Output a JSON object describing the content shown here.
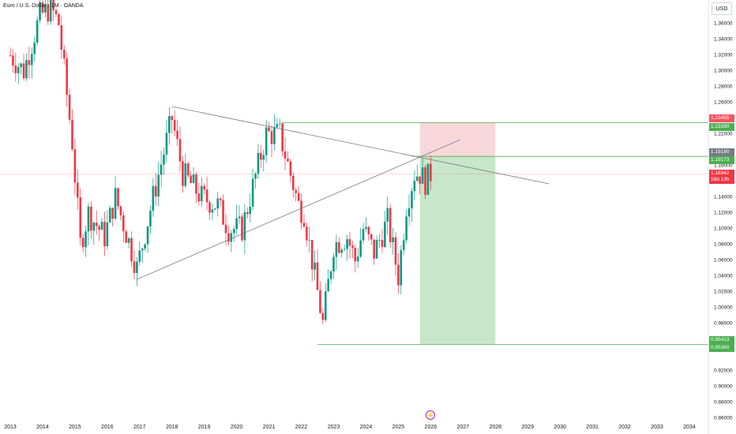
{
  "title": "Euro / U.S. Dollar · 1M · OANDA",
  "currency_label": "USD",
  "colors": {
    "up": "#089981",
    "down": "#f23645",
    "target_zone": "#c8e6c9",
    "stop_zone": "#f8d7da",
    "level_line": "#4caf50",
    "trend_line": "#787b86",
    "price_line": "#f23645"
  },
  "chart_data": {
    "type": "candlestick",
    "title": "Euro / U.S. Dollar · 1M · OANDA",
    "x_axis_years": [
      "2013",
      "2014",
      "2015",
      "2016",
      "2017",
      "2018",
      "2019",
      "2020",
      "2021",
      "2022",
      "2023",
      "2024",
      "2025",
      "2026",
      "2027",
      "2028",
      "2029",
      "2030",
      "2031",
      "2032",
      "2033",
      "2034"
    ],
    "y_ticks": [
      "1.36000",
      "1.34000",
      "1.32000",
      "1.30000",
      "1.28000",
      "1.26000",
      "1.22000",
      "1.18000",
      "1.14000",
      "1.12000",
      "1.10000",
      "1.08000",
      "1.06000",
      "1.04000",
      "1.02000",
      "1.00000",
      "0.98000",
      "0.96000",
      "0.92000",
      "0.90000",
      "0.88000",
      "0.86000"
    ],
    "ylim": [
      0.86,
      1.38
    ],
    "anchors": [
      [
        "2013-01",
        1.32
      ],
      [
        "2013-06",
        1.3
      ],
      [
        "2013-12",
        1.37
      ],
      [
        "2014-04",
        1.38
      ],
      [
        "2014-07",
        1.36
      ],
      [
        "2014-12",
        1.21
      ],
      [
        "2015-03",
        1.08
      ],
      [
        "2015-06",
        1.12
      ],
      [
        "2015-12",
        1.09
      ],
      [
        "2016-04",
        1.14
      ],
      [
        "2016-12",
        1.05
      ],
      [
        "2017-06",
        1.14
      ],
      [
        "2018-01",
        1.24
      ],
      [
        "2018-05",
        1.17
      ],
      [
        "2018-12",
        1.14
      ],
      [
        "2019-06",
        1.13
      ],
      [
        "2019-10",
        1.1
      ],
      [
        "2020-03",
        1.1
      ],
      [
        "2020-12",
        1.22
      ],
      [
        "2021-05",
        1.22
      ],
      [
        "2021-12",
        1.13
      ],
      [
        "2022-02",
        1.12
      ],
      [
        "2022-09",
        0.98
      ],
      [
        "2023-01",
        1.08
      ],
      [
        "2023-06",
        1.09
      ],
      [
        "2023-09",
        1.06
      ],
      [
        "2023-12",
        1.1
      ],
      [
        "2024-04",
        1.07
      ],
      [
        "2024-09",
        1.11
      ],
      [
        "2025-01",
        1.04
      ],
      [
        "2025-04",
        1.13
      ],
      [
        "2025-07",
        1.17
      ],
      [
        "2025-09",
        1.17
      ],
      [
        "2025-11",
        1.16
      ],
      [
        "2026-01",
        1.17
      ]
    ],
    "trend_lines": [
      {
        "from": [
          "2018-01",
          1.255
        ],
        "to": [
          "2029-09",
          1.157
        ]
      },
      {
        "from": [
          "2016-12",
          1.036
        ],
        "to": [
          "2026-12",
          1.213
        ]
      }
    ],
    "horizontal_levels": [
      {
        "from": "2021-06",
        "value": 1.2346
      },
      {
        "from": "2025-06",
        "value": 1.1918
      },
      {
        "from": "2022-07",
        "value": 0.9536
      }
    ],
    "position": {
      "entry": 1.1918,
      "stop": 1.2346,
      "target": 0.9536,
      "from": "2025-09",
      "to": "2028-01"
    },
    "current_price": 1.16942,
    "price_badges": [
      {
        "text": "1.23455",
        "value": 1.23455,
        "color": "#f7525f"
      },
      {
        "text": "1.23390",
        "value": 1.2339,
        "color": "#4caf50"
      },
      {
        "text": "1.19180",
        "value": 1.1918,
        "color": "#787b86"
      },
      {
        "text": "1.19173",
        "value": 1.19173,
        "color": "#4caf50"
      },
      {
        "text": "1.16942",
        "sub": "18d 13h",
        "value": 1.16942,
        "color": "#f23645"
      },
      {
        "text": "0.95413",
        "value": 0.95413,
        "color": "#4caf50"
      },
      {
        "text": "0.95360",
        "value": 0.9536,
        "color": "#4caf50"
      }
    ]
  }
}
